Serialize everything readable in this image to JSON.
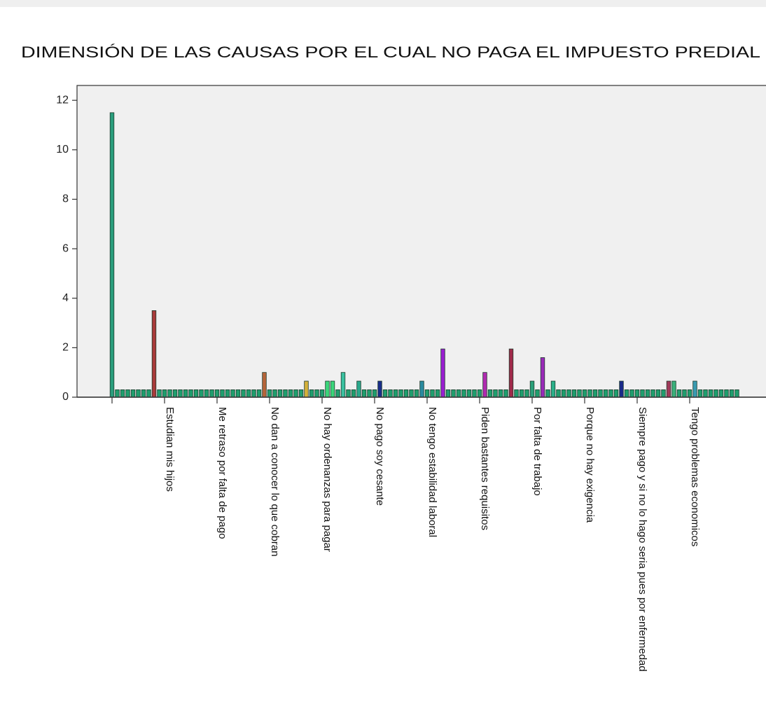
{
  "chart_data": {
    "type": "bar",
    "title": "DIMENSIÓN DE LAS CAUSAS POR EL CUAL NO PAGA EL IMPUESTO PREDIAL",
    "categories": [
      null,
      null,
      null,
      null,
      null,
      null,
      null,
      null,
      null,
      null,
      "Estudian mis hijos",
      null,
      null,
      null,
      null,
      null,
      null,
      null,
      null,
      null,
      "Me retraso por falta de pago",
      null,
      null,
      null,
      null,
      null,
      null,
      null,
      null,
      null,
      "No dan a conocer lo que cobran",
      null,
      null,
      null,
      null,
      null,
      null,
      null,
      null,
      null,
      "No hay ordenanzas para pagar",
      null,
      null,
      null,
      null,
      null,
      null,
      null,
      null,
      null,
      "No pago soy cesante",
      null,
      null,
      null,
      null,
      null,
      null,
      null,
      null,
      null,
      "No tengo estabilidad laboral",
      null,
      null,
      null,
      null,
      null,
      null,
      null,
      null,
      null,
      "Piden bastantes requisitos",
      null,
      null,
      null,
      null,
      null,
      null,
      null,
      null,
      null,
      "Por falta de trabajo",
      null,
      null,
      null,
      null,
      null,
      null,
      null,
      null,
      null,
      "Porque no hay exigencia",
      null,
      null,
      null,
      null,
      null,
      null,
      null,
      null,
      null,
      "Siempre pago y si no lo hago seria pues por enfermedad",
      null,
      null,
      null,
      null,
      null,
      null,
      null,
      null,
      null,
      "Tengo problemas economicos",
      null,
      null,
      null,
      null,
      null,
      null,
      null,
      null,
      null
    ],
    "values": [
      11.5,
      0.3,
      0.3,
      0.3,
      0.3,
      0.3,
      0.3,
      0.3,
      3.5,
      0.3,
      0.3,
      0.3,
      0.3,
      0.3,
      0.3,
      0.3,
      0.3,
      0.3,
      0.3,
      0.3,
      0.3,
      0.3,
      0.3,
      0.3,
      0.3,
      0.3,
      0.3,
      0.3,
      0.3,
      1.0,
      0.3,
      0.3,
      0.3,
      0.3,
      0.3,
      0.3,
      0.3,
      0.65,
      0.3,
      0.3,
      0.3,
      0.65,
      0.65,
      0.3,
      1.0,
      0.3,
      0.3,
      0.65,
      0.3,
      0.3,
      0.3,
      0.65,
      0.3,
      0.3,
      0.3,
      0.3,
      0.3,
      0.3,
      0.3,
      0.65,
      0.3,
      0.3,
      0.3,
      1.95,
      0.3,
      0.3,
      0.3,
      0.3,
      0.3,
      0.3,
      0.3,
      1.0,
      0.3,
      0.3,
      0.3,
      0.3,
      1.95,
      0.3,
      0.3,
      0.3,
      0.65,
      0.3,
      1.6,
      0.3,
      0.65,
      0.3,
      0.3,
      0.3,
      0.3,
      0.3,
      0.3,
      0.3,
      0.3,
      0.3,
      0.3,
      0.3,
      0.3,
      0.65,
      0.3,
      0.3,
      0.3,
      0.3,
      0.3,
      0.3,
      0.3,
      0.3,
      0.65,
      0.65,
      0.3,
      0.3,
      0.3,
      0.65,
      0.3,
      0.3,
      0.3,
      0.3,
      0.3,
      0.3,
      0.3,
      0.3
    ],
    "colors": [
      "#2a9d7c",
      "#1f9e6e",
      "#1f9e6e",
      "#1f9e6e",
      "#1f9e6e",
      "#1f9e6e",
      "#1f9e6e",
      "#1f9e6e",
      "#a83a3a",
      "#1f9e6e",
      "#1f9e6e",
      "#1f9e6e",
      "#1f9e6e",
      "#1f9e6e",
      "#1f9e6e",
      "#1f9e6e",
      "#1f9e6e",
      "#1f9e6e",
      "#1f9e6e",
      "#1f9e6e",
      "#1f9e6e",
      "#1f9e6e",
      "#1f9e6e",
      "#1f9e6e",
      "#1f9e6e",
      "#1f9e6e",
      "#1f9e6e",
      "#1f9e6e",
      "#1f9e6e",
      "#b5653a",
      "#1f9e6e",
      "#1f9e6e",
      "#1f9e6e",
      "#1f9e6e",
      "#1f9e6e",
      "#1f9e6e",
      "#1f9e6e",
      "#d4b03a",
      "#1f9e6e",
      "#1f9e6e",
      "#1f9e6e",
      "#3bd67a",
      "#3bd67a",
      "#1f9e6e",
      "#3ac1a0",
      "#1f9e6e",
      "#1f9e6e",
      "#2aa88c",
      "#1f9e6e",
      "#1f9e6e",
      "#1f9e6e",
      "#1a2e8a",
      "#1f9e6e",
      "#1f9e6e",
      "#1f9e6e",
      "#1f9e6e",
      "#1f9e6e",
      "#1f9e6e",
      "#1f9e6e",
      "#2a8aa0",
      "#1f9e6e",
      "#1f9e6e",
      "#1f9e6e",
      "#9a1fd0",
      "#1f9e6e",
      "#1f9e6e",
      "#1f9e6e",
      "#1f9e6e",
      "#1f9e6e",
      "#1f9e6e",
      "#1f9e6e",
      "#b02ab0",
      "#1f9e6e",
      "#1f9e6e",
      "#1f9e6e",
      "#1f9e6e",
      "#a02a4a",
      "#1f9e6e",
      "#1f9e6e",
      "#1f9e6e",
      "#2aa07a",
      "#1f9e6e",
      "#9a2ab8",
      "#1f9e6e",
      "#2ab08a",
      "#1f9e6e",
      "#1f9e6e",
      "#1f9e6e",
      "#1f9e6e",
      "#1f9e6e",
      "#1f9e6e",
      "#1f9e6e",
      "#1f9e6e",
      "#1f9e6e",
      "#1f9e6e",
      "#1f9e6e",
      "#1f9e6e",
      "#1a2a8a",
      "#1f9e6e",
      "#1f9e6e",
      "#1f9e6e",
      "#1f9e6e",
      "#1f9e6e",
      "#1f9e6e",
      "#1f9e6e",
      "#1f9e6e",
      "#a03a5a",
      "#3ab07a",
      "#1f9e6e",
      "#1f9e6e",
      "#1f9e6e",
      "#3a9ab0",
      "#1f9e6e",
      "#1f9e6e",
      "#1f9e6e",
      "#1f9e6e",
      "#1f9e6e",
      "#1f9e6e",
      "#1f9e6e",
      "#1f9e6e"
    ],
    "ylim": [
      0,
      12.6
    ],
    "yticks": [
      0,
      2,
      4,
      6,
      8,
      10,
      12
    ],
    "grid": false
  }
}
